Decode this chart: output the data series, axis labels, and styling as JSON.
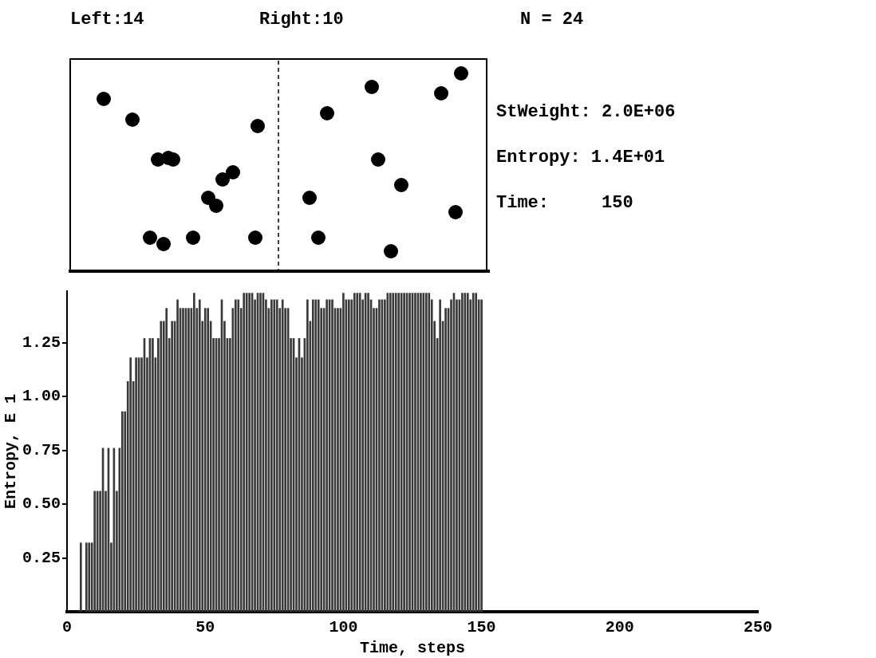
{
  "chart_data": {
    "type": "bar",
    "xlabel": "Time, steps",
    "ylabel": "Entropy, E 1",
    "annotations": [
      "Left:14",
      "Right:10",
      "N = 24",
      "StWeight: 2.0E+06",
      "Entropy: 1.4E+01",
      "Time:     150"
    ],
    "x": [
      1,
      2,
      3,
      4,
      5,
      6,
      7,
      8,
      9,
      10,
      11,
      12,
      13,
      14,
      15,
      16,
      17,
      18,
      19,
      20,
      21,
      22,
      23,
      24,
      25,
      26,
      27,
      28,
      29,
      30,
      31,
      32,
      33,
      34,
      35,
      36,
      37,
      38,
      39,
      40,
      41,
      42,
      43,
      44,
      45,
      46,
      47,
      48,
      49,
      50,
      51,
      52,
      53,
      54,
      55,
      56,
      57,
      58,
      59,
      60,
      61,
      62,
      63,
      64,
      65,
      66,
      67,
      68,
      69,
      70,
      71,
      72,
      73,
      74,
      75,
      76,
      77,
      78,
      79,
      80,
      81,
      82,
      83,
      84,
      85,
      86,
      87,
      88,
      89,
      90,
      91,
      92,
      93,
      94,
      95,
      96,
      97,
      98,
      99,
      100,
      101,
      102,
      103,
      104,
      105,
      106,
      107,
      108,
      109,
      110,
      111,
      112,
      113,
      114,
      115,
      116,
      117,
      118,
      119,
      120,
      121,
      122,
      123,
      124,
      125,
      126,
      127,
      128,
      129,
      130,
      131,
      132,
      133,
      134,
      135,
      136,
      137,
      138,
      139,
      140,
      141,
      142,
      143,
      144,
      145,
      146,
      147,
      148,
      149,
      150
    ],
    "values": [
      0,
      0,
      0,
      0,
      0.32,
      0,
      0.32,
      0.32,
      0.32,
      0.56,
      0.56,
      0.56,
      0.76,
      0.56,
      0.76,
      0.32,
      0.76,
      0.56,
      0.76,
      0.93,
      0.93,
      1.07,
      1.18,
      1.07,
      1.18,
      1.18,
      1.18,
      1.27,
      1.18,
      1.27,
      1.27,
      1.18,
      1.27,
      1.35,
      1.35,
      1.41,
      1.27,
      1.35,
      1.35,
      1.45,
      1.41,
      1.41,
      1.41,
      1.41,
      1.41,
      1.48,
      1.41,
      1.45,
      1.35,
      1.41,
      1.41,
      1.35,
      1.27,
      1.27,
      1.27,
      1.45,
      1.35,
      1.27,
      1.27,
      1.41,
      1.45,
      1.45,
      1.41,
      1.48,
      1.48,
      1.48,
      1.48,
      1.45,
      1.48,
      1.48,
      1.48,
      1.45,
      1.41,
      1.45,
      1.45,
      1.45,
      1.41,
      1.45,
      1.41,
      1.41,
      1.27,
      1.27,
      1.18,
      1.27,
      1.18,
      1.27,
      1.45,
      1.35,
      1.45,
      1.45,
      1.45,
      1.41,
      1.41,
      1.45,
      1.45,
      1.45,
      1.41,
      1.41,
      1.41,
      1.48,
      1.45,
      1.45,
      1.45,
      1.48,
      1.48,
      1.48,
      1.45,
      1.48,
      1.48,
      1.45,
      1.41,
      1.41,
      1.45,
      1.45,
      1.45,
      1.48,
      1.48,
      1.48,
      1.48,
      1.48,
      1.48,
      1.48,
      1.48,
      1.48,
      1.48,
      1.48,
      1.48,
      1.48,
      1.48,
      1.48,
      1.48,
      1.45,
      1.35,
      1.27,
      1.45,
      1.35,
      1.41,
      1.41,
      1.45,
      1.48,
      1.45,
      1.45,
      1.48,
      1.48,
      1.48,
      1.45,
      1.48,
      1.48,
      1.45,
      1.45
    ],
    "color": "#3a3a3a",
    "xlim": [
      0,
      250
    ],
    "xticks": [
      0,
      50,
      100,
      150,
      200,
      250
    ],
    "ylim": [
      0,
      1.49
    ],
    "yticks": [
      {
        "value": 0.25,
        "label": "0.25"
      },
      {
        "value": 0.5,
        "label": "0.50"
      },
      {
        "value": 0.75,
        "label": "0.75"
      },
      {
        "value": 1,
        "label": "1.00"
      },
      {
        "value": 1.25,
        "label": "1.25"
      }
    ]
  }
}
